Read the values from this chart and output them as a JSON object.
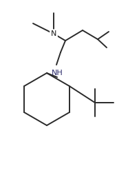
{
  "line_color": "#2a2a2a",
  "nh_color": "#2b2b6b",
  "bg_color": "#ffffff",
  "line_width": 1.4,
  "font_size_label": 8.0,
  "figsize": [
    1.86,
    2.54
  ],
  "dpi": 100
}
